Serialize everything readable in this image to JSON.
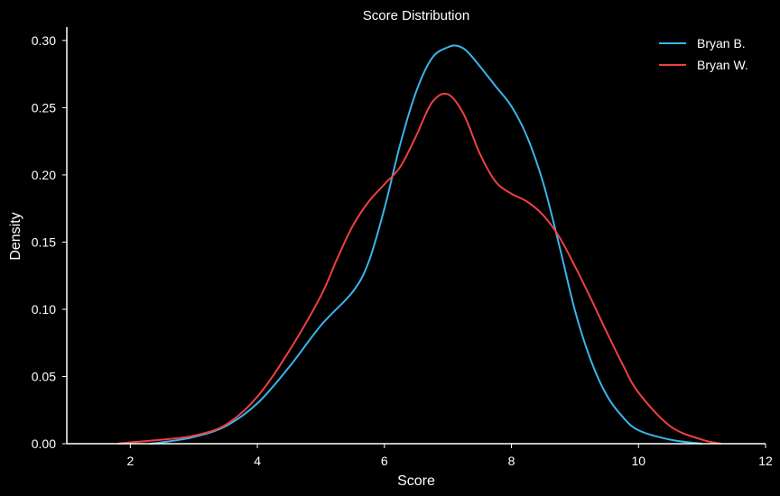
{
  "chart_data": {
    "type": "line",
    "title": "Score Distribution",
    "xlabel": "Score",
    "ylabel": "Density",
    "xlim": [
      1,
      12
    ],
    "ylim": [
      0,
      0.31
    ],
    "xticks": [
      2,
      4,
      6,
      8,
      10,
      12
    ],
    "yticks": [
      0.0,
      0.05,
      0.1,
      0.15,
      0.2,
      0.25,
      0.3
    ],
    "ytick_labels": [
      "0.00",
      "0.05",
      "0.10",
      "0.15",
      "0.20",
      "0.25",
      "0.30"
    ],
    "grid": false,
    "legend_position": "top-right",
    "background": "#000000",
    "axis_color": "#ffffff",
    "series": [
      {
        "name": "Bryan B.",
        "color": "#3bb4ea",
        "x": [
          2.3,
          2.5,
          3.0,
          3.5,
          4.0,
          4.5,
          5.0,
          5.5,
          5.75,
          6.0,
          6.25,
          6.5,
          6.75,
          7.0,
          7.15,
          7.3,
          7.5,
          7.75,
          8.0,
          8.25,
          8.5,
          8.75,
          9.0,
          9.25,
          9.5,
          9.75,
          10.0,
          10.5,
          11.0
        ],
        "y": [
          0.0,
          0.001,
          0.005,
          0.013,
          0.03,
          0.057,
          0.088,
          0.113,
          0.135,
          0.175,
          0.223,
          0.262,
          0.287,
          0.295,
          0.296,
          0.292,
          0.281,
          0.266,
          0.251,
          0.228,
          0.194,
          0.148,
          0.099,
          0.062,
          0.036,
          0.02,
          0.01,
          0.003,
          0.0
        ]
      },
      {
        "name": "Bryan W.",
        "color": "#f04040",
        "x": [
          1.8,
          2.0,
          2.5,
          3.0,
          3.5,
          4.0,
          4.5,
          5.0,
          5.25,
          5.5,
          5.75,
          6.0,
          6.25,
          6.5,
          6.75,
          7.0,
          7.25,
          7.5,
          7.75,
          8.0,
          8.25,
          8.5,
          8.75,
          9.0,
          9.25,
          9.5,
          9.75,
          10.0,
          10.5,
          11.0,
          11.3
        ],
        "y": [
          0.0,
          0.001,
          0.003,
          0.006,
          0.014,
          0.035,
          0.069,
          0.11,
          0.137,
          0.162,
          0.18,
          0.193,
          0.206,
          0.229,
          0.254,
          0.26,
          0.245,
          0.216,
          0.195,
          0.186,
          0.18,
          0.17,
          0.154,
          0.132,
          0.108,
          0.083,
          0.059,
          0.038,
          0.013,
          0.003,
          0.0
        ]
      }
    ]
  }
}
